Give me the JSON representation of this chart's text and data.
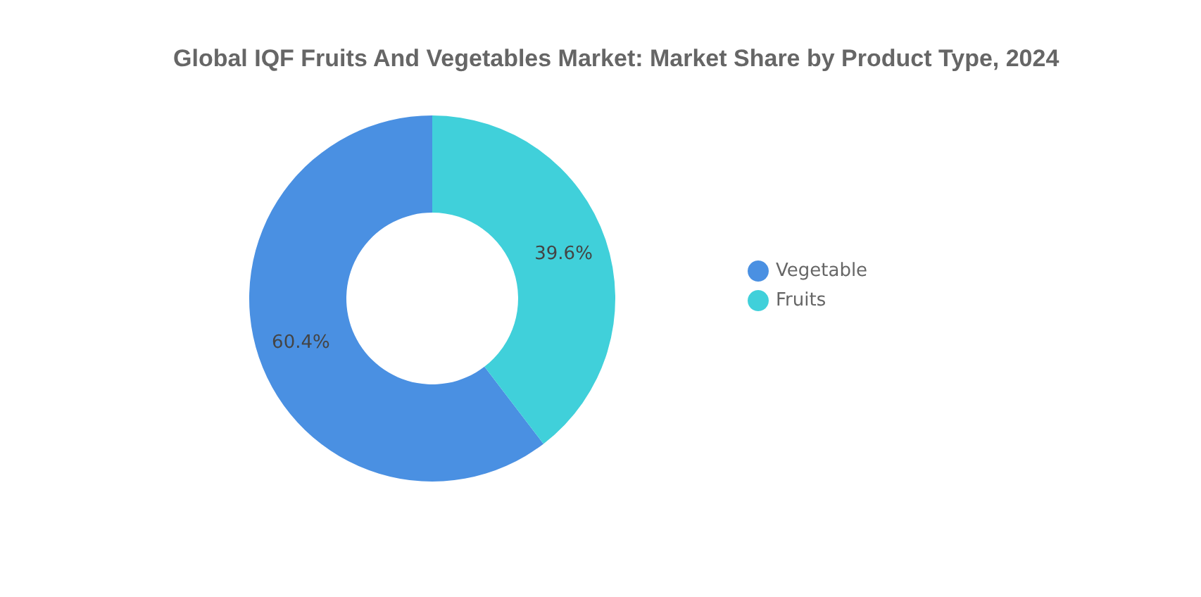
{
  "chart_data": {
    "type": "donut",
    "title": "Global IQF Fruits And Vegetables Market: Market Share by Product Type, 2024",
    "categories": [
      "Vegetable",
      "Fruits"
    ],
    "values": [
      60.4,
      39.6
    ],
    "colors": [
      "#4a90e2",
      "#40d0da"
    ],
    "value_labels": [
      "60.4%",
      "39.6%"
    ],
    "legend": "right"
  }
}
